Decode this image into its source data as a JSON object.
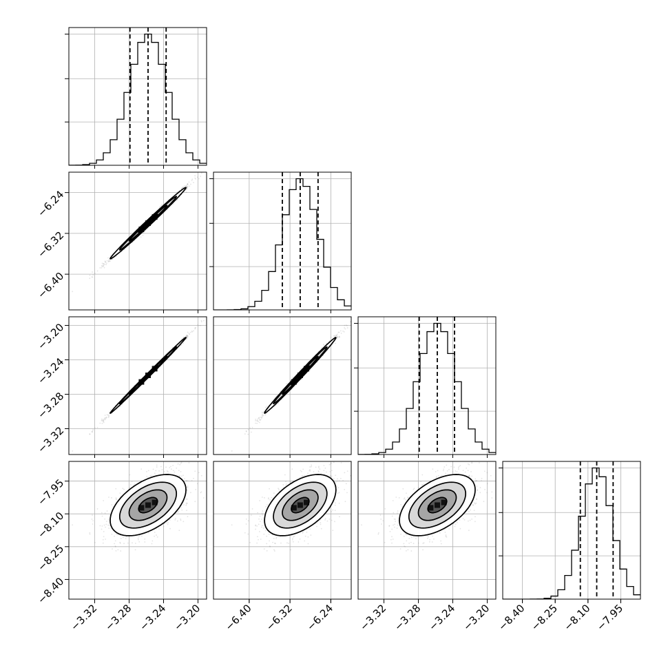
{
  "chart_data": {
    "type": "corner",
    "n_params": 4,
    "grid": true,
    "params": [
      {
        "range": [
          -3.35,
          -3.19
        ],
        "mean": -3.258,
        "sd": 0.022,
        "quantiles": [
          -3.279,
          -3.258,
          -3.237
        ],
        "ticks": [
          -3.32,
          -3.28,
          -3.24,
          -3.2
        ],
        "tick_labels": [
          "−3.32",
          "−3.28",
          "−3.24",
          "−3.20"
        ]
      },
      {
        "range": [
          -6.47,
          -6.2
        ],
        "mean": -6.3,
        "sd": 0.035,
        "quantiles": [
          -6.335,
          -6.3,
          -6.265
        ],
        "ticks": [
          -6.4,
          -6.32,
          -6.24
        ],
        "tick_labels": [
          "−6.40",
          "−6.32",
          "−6.24"
        ]
      },
      {
        "range": [
          -3.35,
          -3.19
        ],
        "mean": -3.258,
        "sd": 0.022,
        "quantiles": [
          -3.279,
          -3.258,
          -3.238
        ],
        "ticks": [
          -3.32,
          -3.28,
          -3.24,
          -3.2
        ],
        "tick_labels": [
          "−3.32",
          "−3.28",
          "−3.24",
          "−3.20"
        ]
      },
      {
        "range": [
          -8.49,
          -7.86
        ],
        "mean": -8.06,
        "sd": 0.07,
        "quantiles": [
          -8.135,
          -8.06,
          -7.985
        ],
        "ticks": [
          -8.4,
          -8.25,
          -8.1,
          -7.95
        ],
        "tick_labels": [
          "−8.40",
          "−8.25",
          "−8.10",
          "−7.95"
        ]
      }
    ],
    "correlations": [
      [
        1,
        0.995,
        0.998,
        0.5
      ],
      [
        0.995,
        1,
        0.995,
        0.5
      ],
      [
        0.998,
        0.995,
        1,
        0.5
      ],
      [
        0.5,
        0.5,
        0.5,
        1
      ]
    ],
    "hist_bins": 20
  }
}
